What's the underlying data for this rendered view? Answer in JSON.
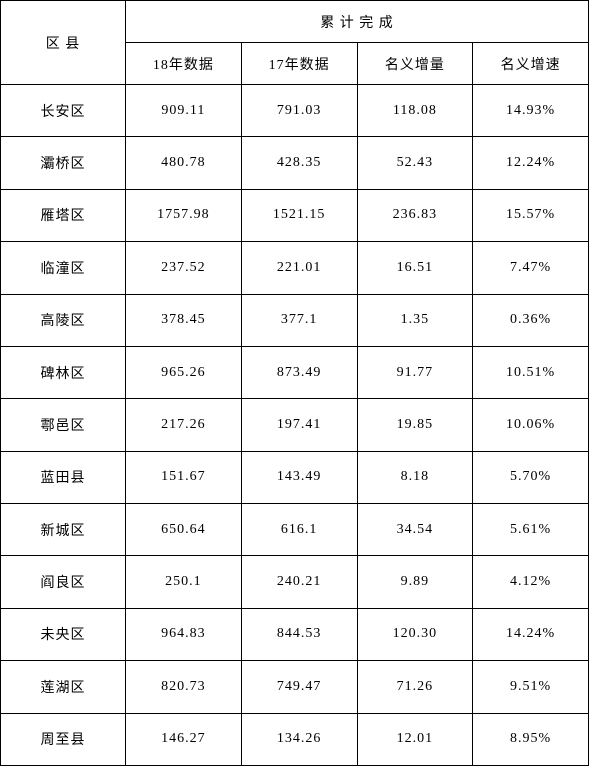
{
  "table": {
    "headers": {
      "district": "区  县",
      "group": "累  计  完  成",
      "col1": "18年数据",
      "col2": "17年数据",
      "col3": "名义增量",
      "col4": "名义增速"
    },
    "rows": [
      {
        "district": "长安区",
        "data18": "909.11",
        "data17": "791.03",
        "increment": "118.08",
        "rate": "14.93%"
      },
      {
        "district": "灞桥区",
        "data18": "480.78",
        "data17": "428.35",
        "increment": "52.43",
        "rate": "12.24%"
      },
      {
        "district": "雁塔区",
        "data18": "1757.98",
        "data17": "1521.15",
        "increment": "236.83",
        "rate": "15.57%"
      },
      {
        "district": "临潼区",
        "data18": "237.52",
        "data17": "221.01",
        "increment": "16.51",
        "rate": "7.47%"
      },
      {
        "district": "高陵区",
        "data18": "378.45",
        "data17": "377.1",
        "increment": "1.35",
        "rate": "0.36%"
      },
      {
        "district": "碑林区",
        "data18": "965.26",
        "data17": "873.49",
        "increment": "91.77",
        "rate": "10.51%"
      },
      {
        "district": "鄠邑区",
        "data18": "217.26",
        "data17": "197.41",
        "increment": "19.85",
        "rate": "10.06%"
      },
      {
        "district": "蓝田县",
        "data18": "151.67",
        "data17": "143.49",
        "increment": "8.18",
        "rate": "5.70%"
      },
      {
        "district": "新城区",
        "data18": "650.64",
        "data17": "616.1",
        "increment": "34.54",
        "rate": "5.61%"
      },
      {
        "district": "阎良区",
        "data18": "250.1",
        "data17": "240.21",
        "increment": "9.89",
        "rate": "4.12%"
      },
      {
        "district": "未央区",
        "data18": "964.83",
        "data17": "844.53",
        "increment": "120.30",
        "rate": "14.24%"
      },
      {
        "district": "莲湖区",
        "data18": "820.73",
        "data17": "749.47",
        "increment": "71.26",
        "rate": "9.51%"
      },
      {
        "district": "周至县",
        "data18": "146.27",
        "data17": "134.26",
        "increment": "12.01",
        "rate": "8.95%"
      }
    ],
    "styling": {
      "border_color": "#000000",
      "background_color": "#ffffff",
      "text_color": "#000000",
      "font_family": "SimSun",
      "font_size": 14,
      "cell_align": "center"
    }
  }
}
